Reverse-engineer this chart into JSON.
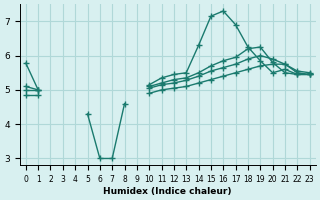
{
  "bg_color": "#d8f0f0",
  "grid_color": "#b0d8d8",
  "line_color": "#1a7a6e",
  "x_min": 0,
  "x_max": 23,
  "y_min": 2.8,
  "y_max": 7.5,
  "x_ticks": [
    0,
    1,
    2,
    3,
    4,
    5,
    6,
    7,
    8,
    9,
    10,
    11,
    12,
    13,
    14,
    15,
    16,
    17,
    18,
    19,
    20,
    21,
    22,
    23
  ],
  "y_ticks": [
    3,
    4,
    5,
    6,
    7
  ],
  "xlabel": "Humidex (Indice chaleur)",
  "lines": [
    {
      "x": [
        0,
        1,
        2,
        3,
        4,
        5,
        6,
        7,
        8,
        9,
        10,
        11,
        12,
        13,
        14,
        15,
        16,
        17,
        18,
        19,
        20,
        21,
        22,
        23
      ],
      "y": [
        5.78,
        5.0,
        null,
        null,
        null,
        4.3,
        3.0,
        3.0,
        4.6,
        null,
        5.15,
        5.35,
        5.45,
        5.5,
        6.3,
        7.15,
        7.3,
        6.9,
        6.25,
        5.85,
        5.5,
        5.6,
        5.45,
        5.45
      ]
    },
    {
      "x": [
        0,
        1,
        2,
        3,
        4,
        5,
        6,
        7,
        8,
        9,
        10,
        11,
        12,
        13,
        14,
        15,
        16,
        17,
        18,
        19,
        20,
        21,
        22,
        23
      ],
      "y": [
        5.1,
        5.0,
        null,
        null,
        null,
        null,
        null,
        null,
        null,
        null,
        5.1,
        5.2,
        5.3,
        5.35,
        5.5,
        5.7,
        5.85,
        5.95,
        6.2,
        6.25,
        5.8,
        5.5,
        5.45,
        5.45
      ]
    },
    {
      "x": [
        0,
        1,
        2,
        3,
        4,
        5,
        6,
        7,
        8,
        9,
        10,
        11,
        12,
        13,
        14,
        15,
        16,
        17,
        18,
        19,
        20,
        21,
        22,
        23
      ],
      "y": [
        5.0,
        5.0,
        null,
        null,
        null,
        null,
        null,
        null,
        null,
        null,
        5.05,
        5.15,
        5.2,
        5.28,
        5.4,
        5.55,
        5.65,
        5.75,
        5.9,
        6.0,
        5.9,
        5.75,
        5.55,
        5.5
      ]
    },
    {
      "x": [
        0,
        1,
        2,
        3,
        4,
        5,
        6,
        7,
        8,
        9,
        10,
        11,
        12,
        13,
        14,
        15,
        16,
        17,
        18,
        19,
        20,
        21,
        22,
        23
      ],
      "y": [
        4.85,
        4.85,
        null,
        null,
        null,
        null,
        null,
        null,
        null,
        null,
        4.9,
        5.0,
        5.05,
        5.1,
        5.2,
        5.3,
        5.4,
        5.5,
        5.6,
        5.7,
        5.75,
        5.75,
        5.5,
        5.45
      ]
    }
  ]
}
